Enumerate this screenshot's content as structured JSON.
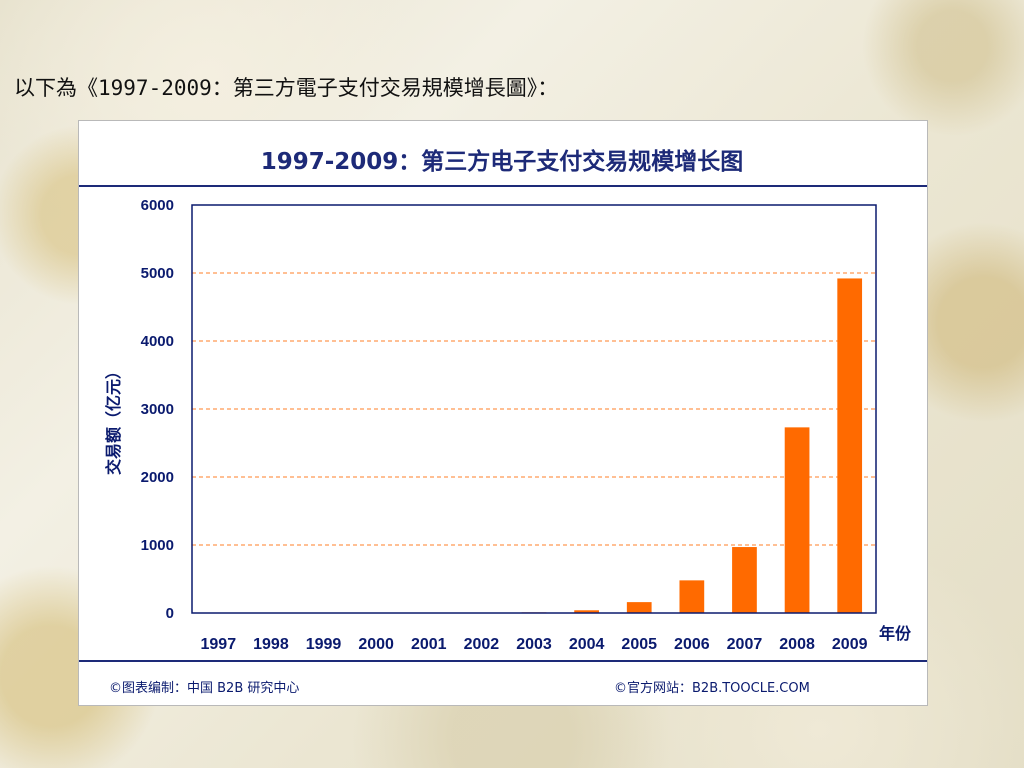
{
  "slide": {
    "heading": "以下為《1997-2009：第三方電子支付交易規模增長圖》："
  },
  "chart": {
    "footer_left": "©图表编制：中国 B2B 研究中心",
    "footer_right": "©官方网站：B2B.TOOCLE.COM"
  },
  "colors": {
    "bar": "#ff6a00",
    "text": "#0a1a6e",
    "grid": "#ff7f27",
    "frame": "#0a1a6e"
  },
  "chart_data": {
    "type": "bar",
    "title": "1997-2009：第三方电子支付交易规模增长图",
    "xlabel": "年份",
    "ylabel": "交易额（亿元）",
    "categories": [
      "1997",
      "1998",
      "1999",
      "2000",
      "2001",
      "2002",
      "2003",
      "2004",
      "2005",
      "2006",
      "2007",
      "2008",
      "2009"
    ],
    "values": [
      0,
      0,
      0,
      0,
      0,
      0,
      10,
      40,
      160,
      480,
      970,
      2730,
      4920
    ],
    "ylim": [
      0,
      6000
    ],
    "yticks": [
      0,
      1000,
      2000,
      3000,
      4000,
      5000,
      6000
    ],
    "grid": true,
    "grid_style": "dashed"
  }
}
